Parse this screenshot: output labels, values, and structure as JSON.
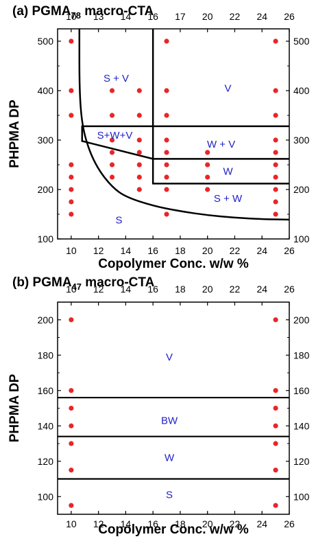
{
  "chart_data": [
    {
      "type": "scatter",
      "title_prefix": "(a) PGMA",
      "title_sub": "78",
      "title_suffix": " macro-CTA",
      "xlabel": "Copolymer Conc. w/w %",
      "ylabel": "PHPMA DP",
      "xlim": [
        9,
        26
      ],
      "ylim": [
        100,
        525
      ],
      "xticks": [
        10,
        12,
        14,
        16,
        18,
        20,
        22,
        24,
        26
      ],
      "yticks": [
        100,
        200,
        300,
        400,
        500
      ],
      "top_xticks": [
        10,
        14,
        16,
        20,
        22,
        24,
        26
      ],
      "top_xtick_labels": [
        "10",
        "14",
        "16",
        "20",
        "22",
        "24",
        "26"
      ],
      "top_xtick_extra": [
        {
          "x": 12,
          "label": "13"
        },
        {
          "x": 18,
          "label": "17"
        }
      ],
      "point_color": "#e8262a",
      "points": [
        {
          "x": 10,
          "y": 500
        },
        {
          "x": 10,
          "y": 400
        },
        {
          "x": 10,
          "y": 350
        },
        {
          "x": 10,
          "y": 250
        },
        {
          "x": 10,
          "y": 225
        },
        {
          "x": 10,
          "y": 200
        },
        {
          "x": 10,
          "y": 175
        },
        {
          "x": 10,
          "y": 150
        },
        {
          "x": 13,
          "y": 400
        },
        {
          "x": 13,
          "y": 350
        },
        {
          "x": 13,
          "y": 300
        },
        {
          "x": 13,
          "y": 275
        },
        {
          "x": 13,
          "y": 250
        },
        {
          "x": 13,
          "y": 225
        },
        {
          "x": 15,
          "y": 400
        },
        {
          "x": 15,
          "y": 350
        },
        {
          "x": 15,
          "y": 300
        },
        {
          "x": 15,
          "y": 275
        },
        {
          "x": 15,
          "y": 250
        },
        {
          "x": 15,
          "y": 225
        },
        {
          "x": 15,
          "y": 200
        },
        {
          "x": 17,
          "y": 500
        },
        {
          "x": 17,
          "y": 400
        },
        {
          "x": 17,
          "y": 350
        },
        {
          "x": 17,
          "y": 300
        },
        {
          "x": 17,
          "y": 275
        },
        {
          "x": 17,
          "y": 250
        },
        {
          "x": 17,
          "y": 225
        },
        {
          "x": 17,
          "y": 200
        },
        {
          "x": 17,
          "y": 150
        },
        {
          "x": 20,
          "y": 275
        },
        {
          "x": 20,
          "y": 250
        },
        {
          "x": 20,
          "y": 225
        },
        {
          "x": 20,
          "y": 200
        },
        {
          "x": 25,
          "y": 500
        },
        {
          "x": 25,
          "y": 400
        },
        {
          "x": 25,
          "y": 350
        },
        {
          "x": 25,
          "y": 300
        },
        {
          "x": 25,
          "y": 275
        },
        {
          "x": 25,
          "y": 250
        },
        {
          "x": 25,
          "y": 225
        },
        {
          "x": 25,
          "y": 200
        },
        {
          "x": 25,
          "y": 175
        },
        {
          "x": 25,
          "y": 150
        }
      ],
      "phase_lines": [
        [
          [
            16,
            525
          ],
          [
            16,
            212
          ]
        ],
        [
          [
            16,
            212
          ],
          [
            26,
            212
          ]
        ],
        [
          [
            10.8,
            328
          ],
          [
            26,
            328
          ]
        ],
        [
          [
            10.8,
            328
          ],
          [
            10.8,
            298
          ]
        ],
        [
          [
            10.8,
            298
          ],
          [
            16,
            262
          ]
        ],
        [
          [
            16,
            262
          ],
          [
            26,
            262
          ]
        ]
      ],
      "phase_curve": [
        [
          10.6,
          525
        ],
        [
          10.6,
          400
        ],
        [
          10.8,
          330
        ],
        [
          11.3,
          280
        ],
        [
          12,
          240
        ],
        [
          13,
          205
        ],
        [
          14,
          185
        ],
        [
          16,
          167
        ],
        [
          18,
          156
        ],
        [
          20,
          148
        ],
        [
          22,
          143
        ],
        [
          24,
          140
        ],
        [
          26,
          139
        ]
      ],
      "regions": [
        {
          "label": "S + V",
          "x": 13.3,
          "y": 425
        },
        {
          "label": "V",
          "x": 21.5,
          "y": 405
        },
        {
          "label": "S+W+V",
          "x": 13.2,
          "y": 310
        },
        {
          "label": "W + V",
          "x": 21.0,
          "y": 292
        },
        {
          "label": "W",
          "x": 21.5,
          "y": 237
        },
        {
          "label": "S + W",
          "x": 21.5,
          "y": 182
        },
        {
          "label": "S",
          "x": 13.5,
          "y": 138
        }
      ]
    },
    {
      "type": "scatter",
      "title_prefix": "(b) PGMA",
      "title_sub": "47",
      "title_suffix": " macro-CTA",
      "xlabel": "Copolymer Conc. w/w %",
      "ylabel": "PHPMA DP",
      "xlim": [
        9,
        26
      ],
      "ylim": [
        90,
        210
      ],
      "xticks": [
        10,
        12,
        14,
        16,
        18,
        20,
        22,
        24,
        26
      ],
      "yticks": [
        100,
        120,
        140,
        160,
        180,
        200
      ],
      "top_xticks": [
        10,
        12,
        14,
        16,
        18,
        20,
        22,
        24,
        26
      ],
      "top_xtick_labels": [
        "10",
        "12",
        "14",
        "16",
        "18",
        "20",
        "22",
        "24",
        "26"
      ],
      "point_color": "#e8262a",
      "points": [
        {
          "x": 10,
          "y": 200
        },
        {
          "x": 10,
          "y": 160
        },
        {
          "x": 10,
          "y": 150
        },
        {
          "x": 10,
          "y": 140
        },
        {
          "x": 10,
          "y": 130
        },
        {
          "x": 10,
          "y": 115
        },
        {
          "x": 10,
          "y": 95
        },
        {
          "x": 25,
          "y": 200
        },
        {
          "x": 25,
          "y": 160
        },
        {
          "x": 25,
          "y": 150
        },
        {
          "x": 25,
          "y": 140
        },
        {
          "x": 25,
          "y": 130
        },
        {
          "x": 25,
          "y": 115
        },
        {
          "x": 25,
          "y": 95
        }
      ],
      "boundaries": [
        156,
        134,
        110
      ],
      "regions": [
        {
          "label": "V",
          "x": 17.2,
          "y": 179
        },
        {
          "label": "BW",
          "x": 17.2,
          "y": 143
        },
        {
          "label": "W",
          "x": 17.2,
          "y": 122
        },
        {
          "label": "S",
          "x": 17.2,
          "y": 101
        }
      ]
    }
  ]
}
